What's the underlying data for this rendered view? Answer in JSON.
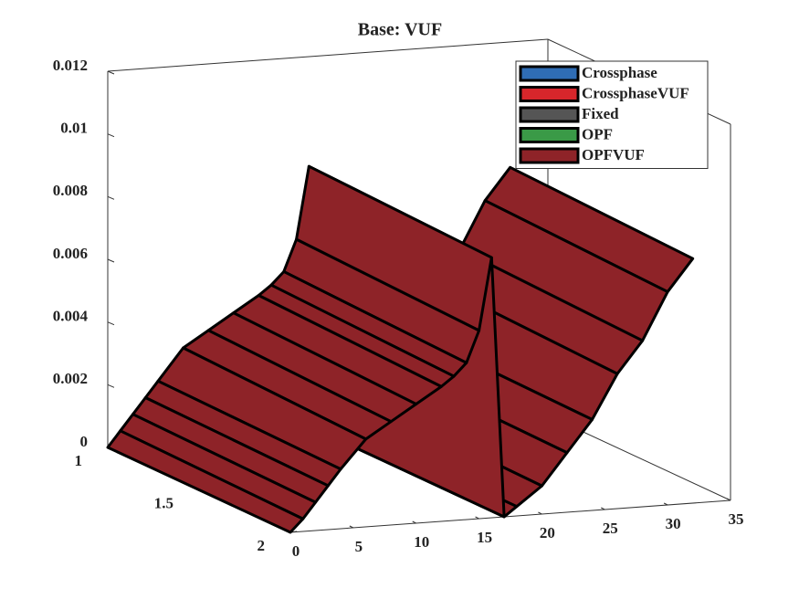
{
  "chart_data": {
    "type": "surface3d",
    "title": "Base: VUF",
    "xlim": [
      0,
      35
    ],
    "xticks": [
      0,
      5,
      10,
      15,
      20,
      25,
      30,
      35
    ],
    "ylim": [
      1,
      2
    ],
    "yticks": [
      1,
      1.5,
      2
    ],
    "zlim": [
      0,
      0.012
    ],
    "zticks": [
      0,
      0.002,
      0.004,
      0.006,
      0.008,
      0.01,
      0.012
    ],
    "legend": "northeast",
    "series": [
      {
        "name": "Crossphase",
        "color": "#2f6db5"
      },
      {
        "name": "CrossphaseVUF",
        "color": "#d7262b"
      },
      {
        "name": "Fixed",
        "color": "#555555"
      },
      {
        "name": "OPF",
        "color": "#3a9a47"
      },
      {
        "name": "OPFVUF",
        "color": "#8e2328",
        "x": [
          0,
          1,
          2,
          3,
          4,
          6,
          8,
          10,
          12,
          13,
          14,
          15,
          16,
          17,
          18,
          20,
          22,
          24,
          26,
          28,
          30,
          32
        ],
        "y": [
          1,
          2
        ],
        "values": [
          [
            0,
            0.0005,
            0.001,
            0.0015,
            0.002,
            0.003,
            0.0035,
            0.004,
            0.0045,
            0.0048,
            0.0052,
            0.0062,
            0.0085,
            0,
            0.0003,
            0.001,
            0.002,
            0.003,
            0.0045,
            0.0055,
            0.007,
            0.008
          ],
          [
            0,
            0.0004,
            0.0009,
            0.0014,
            0.0019,
            0.0028,
            0.0033,
            0.0038,
            0.0043,
            0.0046,
            0.005,
            0.006,
            0.0083,
            0,
            0.0003,
            0.0009,
            0.0019,
            0.0029,
            0.0043,
            0.0053,
            0.0068,
            0.0078
          ]
        ]
      }
    ]
  }
}
